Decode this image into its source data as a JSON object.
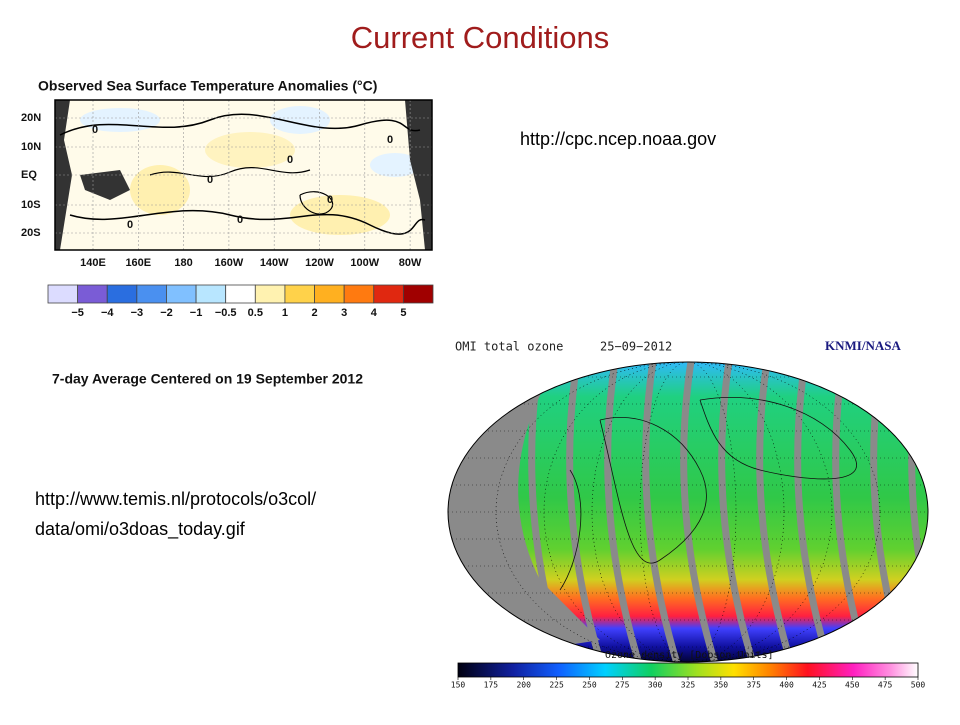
{
  "title": "Current Conditions",
  "sst_panel": {
    "title": "Observed Sea Surface Temperature Anomalies (°C)",
    "lat_labels": [
      "20N",
      "10N",
      "EQ",
      "10S",
      "20S"
    ],
    "lon_labels": [
      "140E",
      "160E",
      "180",
      "160W",
      "140W",
      "120W",
      "100W",
      "80W"
    ],
    "contour_labels": [
      "0",
      "0",
      "0",
      "0",
      "0",
      "0",
      "0"
    ],
    "colorbar_labels": [
      "−5",
      "−4",
      "−3",
      "−2",
      "−1",
      "−0.5",
      "0.5",
      "1",
      "2",
      "3",
      "4",
      "5"
    ],
    "caption": "7-day Average Centered on 19 September 2012"
  },
  "sst_source_url": "http://cpc.ncep.noaa.gov",
  "ozone_source_url": [
    "http://www.temis.nl/protocols/o3col/",
    "data/omi/o3doas_today.gif"
  ],
  "ozone_panel": {
    "title": "OMI total ozone",
    "date": "25−09−2012",
    "credit": "KNMI/NASA",
    "colorbar_title": "Ozone density [Dobson Units]",
    "colorbar_ticks": [
      150,
      175,
      200,
      225,
      250,
      275,
      300,
      325,
      350,
      375,
      400,
      425,
      450,
      475,
      500
    ]
  }
}
